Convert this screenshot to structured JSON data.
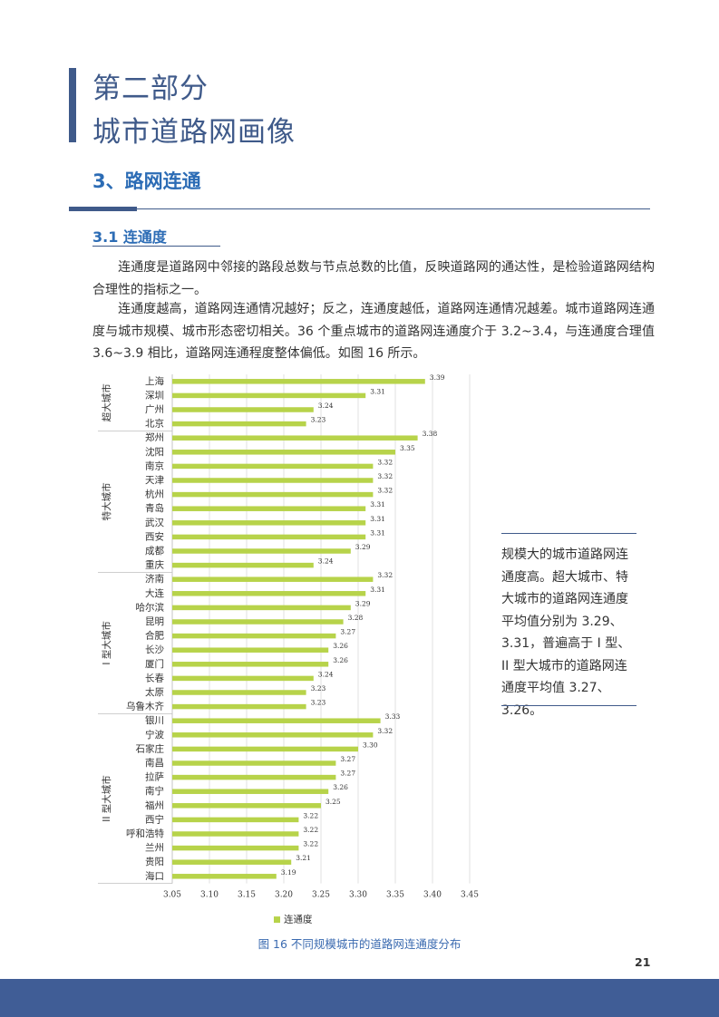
{
  "part": {
    "line1": "第二部分",
    "line2": "城市道路网画像"
  },
  "section": {
    "title": "3、路网连通"
  },
  "subsection": {
    "title": "3.1 连通度"
  },
  "paragraphs": {
    "p1": "连通度是道路网中邻接的路段总数与节点总数的比值，反映道路网的通达性，是检验道路网结构合理性的指标之一。",
    "p2": "连通度越高，道路网连通情况越好；反之，连通度越低，道路网连通情况越差。城市道路网连通度与城市规模、城市形态密切相关。36 个重点城市的道路网连通度介于 3.2~3.4，与连通度合理值 3.6~3.9 相比，道路网连通程度整体偏低。如图 16 所示。"
  },
  "side_note": "规模大的城市道路网连通度高。超大城市、特大城市的道路网连通度平均值分别为 3.29、3.31，普遍高于 I 型、II 型大城市的道路网连通度平均值 3.27、3.26。",
  "figure": {
    "caption": "图 16 不同规模城市的道路网连通度分布"
  },
  "page": {
    "number": "21"
  },
  "colors": {
    "bar": "#b7d34a",
    "accent": "#3f5a8a",
    "heading": "#2c6cb5",
    "footer": "#405d96"
  },
  "chart_data": {
    "type": "bar",
    "orientation": "horizontal",
    "legend": [
      "连通度"
    ],
    "legend_position": "bottom",
    "xlim": [
      3.05,
      3.45
    ],
    "xticks": [
      "3.05",
      "3.10",
      "3.15",
      "3.20",
      "3.25",
      "3.30",
      "3.35",
      "3.40",
      "3.45"
    ],
    "groups": [
      {
        "name": "超大城市",
        "items": [
          {
            "city": "上海",
            "value": 3.39
          },
          {
            "city": "深圳",
            "value": 3.31
          },
          {
            "city": "广州",
            "value": 3.24
          },
          {
            "city": "北京",
            "value": 3.23
          }
        ]
      },
      {
        "name": "特大城市",
        "items": [
          {
            "city": "郑州",
            "value": 3.38
          },
          {
            "city": "沈阳",
            "value": 3.35
          },
          {
            "city": "南京",
            "value": 3.32
          },
          {
            "city": "天津",
            "value": 3.32
          },
          {
            "city": "杭州",
            "value": 3.32
          },
          {
            "city": "青岛",
            "value": 3.31
          },
          {
            "city": "武汉",
            "value": 3.31
          },
          {
            "city": "西安",
            "value": 3.31
          },
          {
            "city": "成都",
            "value": 3.29
          },
          {
            "city": "重庆",
            "value": 3.24
          }
        ]
      },
      {
        "name": "I 型大城市",
        "items": [
          {
            "city": "济南",
            "value": 3.32
          },
          {
            "city": "大连",
            "value": 3.31
          },
          {
            "city": "哈尔滨",
            "value": 3.29
          },
          {
            "city": "昆明",
            "value": 3.28
          },
          {
            "city": "合肥",
            "value": 3.27
          },
          {
            "city": "长沙",
            "value": 3.26
          },
          {
            "city": "厦门",
            "value": 3.26
          },
          {
            "city": "长春",
            "value": 3.24
          },
          {
            "city": "太原",
            "value": 3.23
          },
          {
            "city": "乌鲁木齐",
            "value": 3.23
          }
        ]
      },
      {
        "name": "II 型大城市",
        "items": [
          {
            "city": "银川",
            "value": 3.33
          },
          {
            "city": "宁波",
            "value": 3.32
          },
          {
            "city": "石家庄",
            "value": 3.3
          },
          {
            "city": "南昌",
            "value": 3.27
          },
          {
            "city": "拉萨",
            "value": 3.27
          },
          {
            "city": "南宁",
            "value": 3.26
          },
          {
            "city": "福州",
            "value": 3.25
          },
          {
            "city": "西宁",
            "value": 3.22
          },
          {
            "city": "呼和浩特",
            "value": 3.22
          },
          {
            "city": "兰州",
            "value": 3.22
          },
          {
            "city": "贵阳",
            "value": 3.21
          },
          {
            "city": "海口",
            "value": 3.19
          }
        ]
      }
    ]
  }
}
